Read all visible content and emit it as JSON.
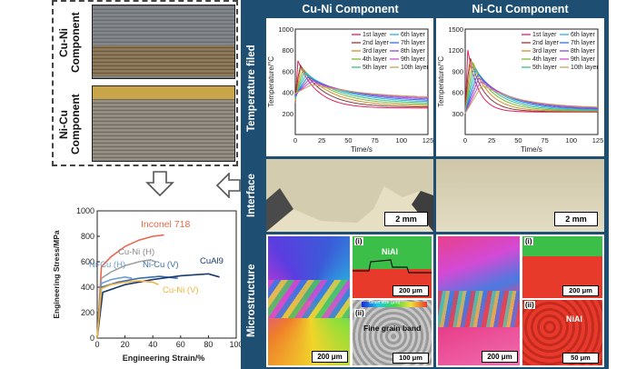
{
  "photos": {
    "top_label": "Cu-Ni Component",
    "bottom_label": "Ni-Cu Component"
  },
  "stress_strain": {
    "ylabel": "Engineering Stress/MPa",
    "xlabel": "Engineering Strain/%",
    "series_labels": {
      "inconel": "Inconel 718",
      "cuni_h": "Cu-Ni (H)",
      "nicu_h": "Ni-Cu (H)",
      "nicu_v": "Ni-Cu (V)",
      "cual9": "CuAl9",
      "cuni_v": "Cu-Ni (V)"
    }
  },
  "table": {
    "col1": "Cu-Ni Component",
    "col2": "Ni-Cu Component",
    "rows": [
      "Temperature filed",
      "Interface",
      "Microstructure"
    ],
    "temp_ylabel": "Temperature/°C",
    "temp_xlabel": "Time/s",
    "legend_left": [
      "1st layer",
      "2nd layer",
      "3rd layer",
      "4th layer",
      "5th layer"
    ],
    "legend_right": [
      "6th layer",
      "7th layer",
      "8th layer",
      "9th layer",
      "10th layer"
    ],
    "scale_interface": "2 mm",
    "micro": {
      "nial": "NiAl",
      "fine_grain": "Fine grain band",
      "label_i": "(i)",
      "label_ii": "(ii)",
      "s200": "200 μm",
      "s100": "100 μm",
      "s50": "50 μm",
      "grain_size": "Grain size (μm)"
    }
  },
  "chart_data": [
    {
      "type": "line",
      "title": "",
      "xlabel": "Engineering Strain/%",
      "ylabel": "Engineering Stress/MPa",
      "xlim": [
        0,
        100
      ],
      "ylim": [
        0,
        1000
      ],
      "xticks": [
        0,
        20,
        40,
        60,
        80,
        100
      ],
      "yticks": [
        0,
        200,
        400,
        600,
        800,
        1000
      ],
      "series": [
        {
          "name": "Inconel 718",
          "color": "#e8694a",
          "x": [
            0,
            3,
            10,
            20,
            30,
            40,
            48
          ],
          "y": [
            0,
            560,
            640,
            720,
            770,
            800,
            810
          ]
        },
        {
          "name": "Cu-Ni (H)",
          "color": "#a0a0a0",
          "x": [
            0,
            3,
            10,
            20,
            30,
            38,
            42
          ],
          "y": [
            0,
            470,
            520,
            570,
            600,
            615,
            600
          ]
        },
        {
          "name": "Ni-Cu (H)",
          "color": "#6d9ec9",
          "x": [
            0,
            3,
            10,
            20,
            25
          ],
          "y": [
            0,
            430,
            460,
            480,
            470
          ]
        },
        {
          "name": "Ni-Cu (V)",
          "color": "#3d6fb0",
          "x": [
            0,
            3,
            15,
            30,
            45,
            58
          ],
          "y": [
            0,
            400,
            440,
            470,
            485,
            470
          ]
        },
        {
          "name": "CuAl9",
          "color": "#1a3b6d",
          "x": [
            0,
            4,
            20,
            40,
            60,
            80,
            88
          ],
          "y": [
            0,
            360,
            420,
            460,
            490,
            505,
            480
          ]
        },
        {
          "name": "Cu-Ni (V)",
          "color": "#f2b33d",
          "x": [
            0,
            3,
            10,
            20,
            30,
            40,
            44
          ],
          "y": [
            0,
            390,
            420,
            440,
            450,
            440,
            420
          ]
        }
      ]
    },
    {
      "type": "line",
      "title": "Cu-Ni Component",
      "xlabel": "Time/s",
      "ylabel": "Temperature/°C",
      "xlim": [
        0,
        125
      ],
      "ylim": [
        0,
        1000
      ],
      "xticks": [
        0,
        25,
        50,
        75,
        100,
        125
      ],
      "yticks": [
        200,
        400,
        600,
        800,
        1000
      ]
    },
    {
      "type": "line",
      "title": "Ni-Cu Component",
      "xlabel": "Time/s",
      "ylabel": "Temperature/°C",
      "xlim": [
        0,
        125
      ],
      "ylim": [
        0,
        1500
      ],
      "xticks": [
        0,
        25,
        50,
        75,
        100,
        125
      ],
      "yticks": [
        300,
        600,
        900,
        1200,
        1500
      ]
    }
  ]
}
